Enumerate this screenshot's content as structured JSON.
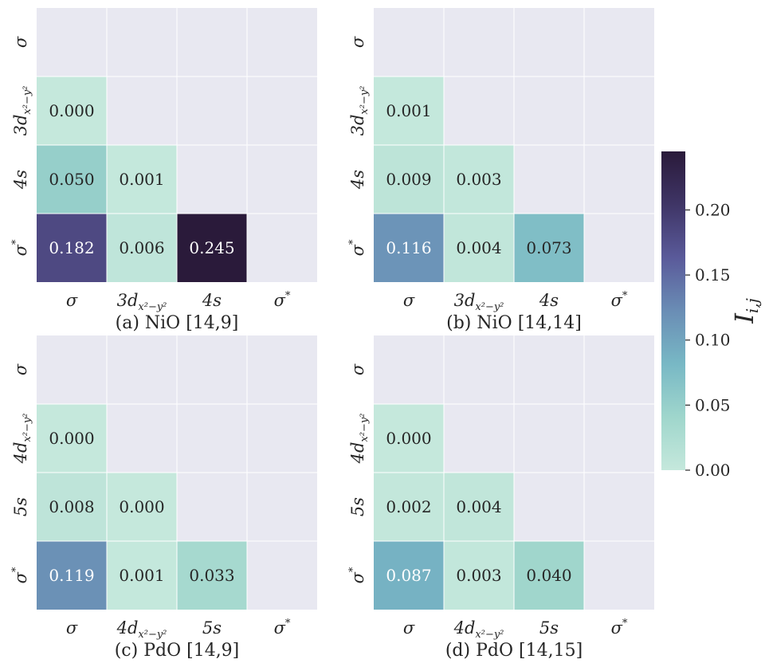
{
  "chart_data": [
    {
      "type": "heatmap",
      "title": "(a) NiO [14,9]",
      "labels": {
        "x": [
          {
            "base": "σ",
            "sup": ""
          },
          {
            "base": "3d",
            "sub": "x²−y²"
          },
          {
            "base": "4s",
            "sub": ""
          },
          {
            "base": "σ",
            "sup": "*"
          }
        ],
        "y": [
          {
            "base": "σ",
            "sup": ""
          },
          {
            "base": "3d",
            "sub": "x²−y²"
          },
          {
            "base": "4s",
            "sub": ""
          },
          {
            "base": "σ",
            "sup": "*"
          }
        ]
      },
      "cells": [
        {
          "row": 1,
          "col": 0,
          "value": 0.0,
          "text": "0.000"
        },
        {
          "row": 2,
          "col": 0,
          "value": 0.05,
          "text": "0.050"
        },
        {
          "row": 2,
          "col": 1,
          "value": 0.001,
          "text": "0.001"
        },
        {
          "row": 3,
          "col": 0,
          "value": 0.182,
          "text": "0.182"
        },
        {
          "row": 3,
          "col": 1,
          "value": 0.006,
          "text": "0.006"
        },
        {
          "row": 3,
          "col": 2,
          "value": 0.245,
          "text": "0.245"
        }
      ]
    },
    {
      "type": "heatmap",
      "title": "(b) NiO [14,14]",
      "labels": {
        "x": [
          {
            "base": "σ",
            "sup": ""
          },
          {
            "base": "3d",
            "sub": "x²−y²"
          },
          {
            "base": "4s",
            "sub": ""
          },
          {
            "base": "σ",
            "sup": "*"
          }
        ],
        "y": [
          {
            "base": "σ",
            "sup": ""
          },
          {
            "base": "3d",
            "sub": "x²−y²"
          },
          {
            "base": "4s",
            "sub": ""
          },
          {
            "base": "σ",
            "sup": "*"
          }
        ]
      },
      "cells": [
        {
          "row": 1,
          "col": 0,
          "value": 0.001,
          "text": "0.001"
        },
        {
          "row": 2,
          "col": 0,
          "value": 0.009,
          "text": "0.009"
        },
        {
          "row": 2,
          "col": 1,
          "value": 0.003,
          "text": "0.003"
        },
        {
          "row": 3,
          "col": 0,
          "value": 0.116,
          "text": "0.116"
        },
        {
          "row": 3,
          "col": 1,
          "value": 0.004,
          "text": "0.004"
        },
        {
          "row": 3,
          "col": 2,
          "value": 0.073,
          "text": "0.073"
        }
      ]
    },
    {
      "type": "heatmap",
      "title": "(c) PdO [14,9]",
      "labels": {
        "x": [
          {
            "base": "σ",
            "sup": ""
          },
          {
            "base": "4d",
            "sub": "x²−y²"
          },
          {
            "base": "5s",
            "sub": ""
          },
          {
            "base": "σ",
            "sup": "*"
          }
        ],
        "y": [
          {
            "base": "σ",
            "sup": ""
          },
          {
            "base": "4d",
            "sub": "x²−y²"
          },
          {
            "base": "5s",
            "sub": ""
          },
          {
            "base": "σ",
            "sup": "*"
          }
        ]
      },
      "cells": [
        {
          "row": 1,
          "col": 0,
          "value": 0.0,
          "text": "0.000"
        },
        {
          "row": 2,
          "col": 0,
          "value": 0.008,
          "text": "0.008"
        },
        {
          "row": 2,
          "col": 1,
          "value": 0.0,
          "text": "0.000"
        },
        {
          "row": 3,
          "col": 0,
          "value": 0.119,
          "text": "0.119"
        },
        {
          "row": 3,
          "col": 1,
          "value": 0.001,
          "text": "0.001"
        },
        {
          "row": 3,
          "col": 2,
          "value": 0.033,
          "text": "0.033"
        }
      ]
    },
    {
      "type": "heatmap",
      "title": "(d) PdO [14,15]",
      "labels": {
        "x": [
          {
            "base": "σ",
            "sup": ""
          },
          {
            "base": "4d",
            "sub": "x²−y²"
          },
          {
            "base": "5s",
            "sub": ""
          },
          {
            "base": "σ",
            "sup": "*"
          }
        ],
        "y": [
          {
            "base": "σ",
            "sup": ""
          },
          {
            "base": "4d",
            "sub": "x²−y²"
          },
          {
            "base": "5s",
            "sub": ""
          },
          {
            "base": "σ",
            "sup": "*"
          }
        ]
      },
      "cells": [
        {
          "row": 1,
          "col": 0,
          "value": 0.0,
          "text": "0.000"
        },
        {
          "row": 2,
          "col": 0,
          "value": 0.002,
          "text": "0.002"
        },
        {
          "row": 2,
          "col": 1,
          "value": 0.004,
          "text": "0.004"
        },
        {
          "row": 3,
          "col": 0,
          "value": 0.087,
          "text": "0.087"
        },
        {
          "row": 3,
          "col": 1,
          "value": 0.003,
          "text": "0.003"
        },
        {
          "row": 3,
          "col": 2,
          "value": 0.04,
          "text": "0.040"
        }
      ]
    }
  ],
  "colorbar": {
    "label": "I",
    "label_sub": "i,j",
    "vmin": 0.0,
    "vmax": 0.245,
    "ticks": [
      0.0,
      0.05,
      0.1,
      0.15,
      0.2
    ],
    "tick_labels": [
      "0.00",
      "0.05",
      "0.10",
      "0.15",
      "0.20"
    ],
    "colormap_stops": [
      "#c5e8dc",
      "#9fd6cc",
      "#78b8c5",
      "#6a8db5",
      "#5a5a9a",
      "#3f3566",
      "#2a1a3a"
    ]
  },
  "colors": {
    "background_cell": "#e8e8f1",
    "grid_line": "#ffffff",
    "text_dark": "#262626",
    "text_light": "#ffffff"
  }
}
